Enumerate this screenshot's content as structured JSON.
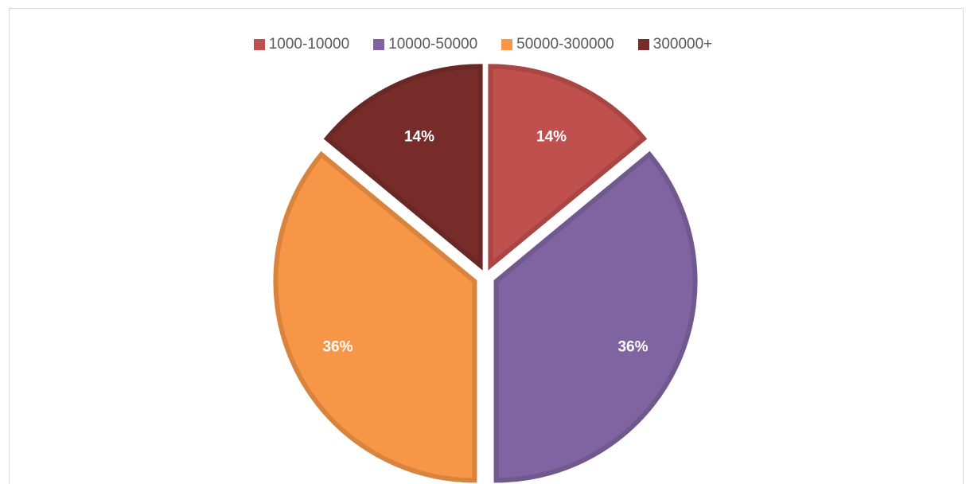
{
  "chart_data": {
    "type": "pie",
    "title": "",
    "categories": [
      "1000-10000",
      "10000-50000",
      "50000-300000",
      "300000+"
    ],
    "values": [
      14,
      36,
      36,
      14
    ],
    "labels": [
      "14%",
      "36%",
      "36%",
      "14%"
    ],
    "colors": [
      "#c0504d",
      "#8064a2",
      "#f79646",
      "#772c2a"
    ],
    "legend_position": "top",
    "exploded": true
  }
}
